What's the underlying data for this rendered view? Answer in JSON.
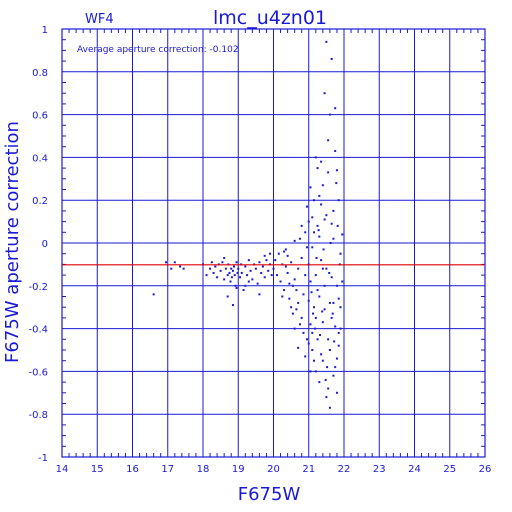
{
  "chart_data": {
    "type": "scatter",
    "panel_label": "WF4",
    "title": "lmc_u4zn01",
    "annotation": "Average aperture correction: -0.102",
    "xlabel": "F675W",
    "ylabel": "F675W aperture correction",
    "xlim": [
      14,
      26
    ],
    "ylim": [
      -1,
      1
    ],
    "x_ticks": [
      "14",
      "15",
      "16",
      "17",
      "18",
      "19",
      "20",
      "21",
      "22",
      "23",
      "24",
      "25",
      "26"
    ],
    "y_ticks": [
      "-1",
      "-0.8",
      "-0.6",
      "-0.4",
      "-0.2",
      "0",
      "0.2",
      "0.4",
      "0.6",
      "0.8",
      "1"
    ],
    "grid": true,
    "reference_line": {
      "y": -0.102,
      "color": "#e00000"
    },
    "colors": {
      "axes": "#1a1ad6",
      "points": "#1a1ad6",
      "reference_line": "#e00000"
    },
    "series": [
      {
        "points": [
          [
            16.6,
            -0.24
          ],
          [
            16.95,
            -0.09
          ],
          [
            17.1,
            -0.12
          ],
          [
            17.2,
            -0.09
          ],
          [
            17.35,
            -0.11
          ],
          [
            17.45,
            -0.12
          ],
          [
            18.0,
            -0.1
          ],
          [
            18.1,
            -0.15
          ],
          [
            18.2,
            -0.12
          ],
          [
            18.25,
            -0.09
          ],
          [
            18.3,
            -0.14
          ],
          [
            18.35,
            -0.11
          ],
          [
            18.4,
            -0.16
          ],
          [
            18.45,
            -0.1
          ],
          [
            18.5,
            -0.13
          ],
          [
            18.55,
            -0.09
          ],
          [
            18.6,
            -0.17
          ],
          [
            18.65,
            -0.12
          ],
          [
            18.7,
            -0.15
          ],
          [
            18.72,
            -0.1
          ],
          [
            18.75,
            -0.14
          ],
          [
            18.78,
            -0.18
          ],
          [
            18.8,
            -0.12
          ],
          [
            18.82,
            -0.16
          ],
          [
            18.85,
            -0.13
          ],
          [
            18.88,
            -0.11
          ],
          [
            18.9,
            -0.15
          ],
          [
            18.92,
            -0.2
          ],
          [
            18.95,
            -0.09
          ],
          [
            18.98,
            -0.14
          ],
          [
            19.0,
            -0.12
          ],
          [
            19.05,
            -0.16
          ],
          [
            19.08,
            -0.1
          ],
          [
            19.1,
            -0.14
          ],
          [
            19.15,
            -0.22
          ],
          [
            19.2,
            -0.11
          ],
          [
            19.25,
            -0.15
          ],
          [
            19.3,
            -0.08
          ],
          [
            19.35,
            -0.13
          ],
          [
            19.4,
            -0.17
          ],
          [
            19.45,
            -0.1
          ],
          [
            19.5,
            -0.12
          ],
          [
            19.55,
            -0.19
          ],
          [
            19.6,
            -0.09
          ],
          [
            19.65,
            -0.14
          ],
          [
            19.7,
            -0.11
          ],
          [
            19.75,
            -0.16
          ],
          [
            19.8,
            -0.08
          ],
          [
            19.85,
            -0.13
          ],
          [
            19.9,
            -0.1
          ],
          [
            19.95,
            -0.15
          ],
          [
            18.7,
            -0.25
          ],
          [
            18.85,
            -0.29
          ],
          [
            19.2,
            -0.2
          ],
          [
            19.6,
            -0.24
          ],
          [
            19.9,
            -0.05
          ],
          [
            18.6,
            -0.07
          ],
          [
            18.95,
            -0.21
          ],
          [
            19.3,
            -0.18
          ],
          [
            19.75,
            -0.06
          ],
          [
            20.0,
            -0.12
          ],
          [
            20.05,
            -0.08
          ],
          [
            20.1,
            -0.15
          ],
          [
            20.15,
            -0.05
          ],
          [
            20.2,
            -0.18
          ],
          [
            20.25,
            -0.1
          ],
          [
            20.3,
            -0.22
          ],
          [
            20.35,
            -0.03
          ],
          [
            20.4,
            -0.14
          ],
          [
            20.45,
            -0.26
          ],
          [
            20.5,
            -0.09
          ],
          [
            20.55,
            -0.2
          ],
          [
            20.6,
            0.01
          ],
          [
            20.65,
            -0.31
          ],
          [
            20.7,
            -0.12
          ],
          [
            20.75,
            -0.38
          ],
          [
            20.8,
            -0.07
          ],
          [
            20.85,
            -0.24
          ],
          [
            20.9,
            0.05
          ],
          [
            20.95,
            -0.45
          ],
          [
            20.6,
            -0.17
          ],
          [
            20.7,
            -0.28
          ],
          [
            20.8,
            -0.35
          ],
          [
            20.9,
            -0.15
          ],
          [
            20.5,
            -0.3
          ],
          [
            20.4,
            -0.06
          ],
          [
            20.65,
            -0.22
          ],
          [
            20.85,
            -0.42
          ],
          [
            20.95,
            -0.02
          ],
          [
            20.75,
            0.02
          ],
          [
            20.55,
            -0.33
          ],
          [
            20.45,
            -0.19
          ],
          [
            20.35,
            -0.11
          ],
          [
            20.25,
            -0.25
          ],
          [
            20.3,
            -0.04
          ],
          [
            20.7,
            -0.49
          ],
          [
            20.8,
            0.08
          ],
          [
            20.9,
            -0.53
          ],
          [
            20.95,
            0.17
          ],
          [
            20.6,
            -0.4
          ],
          [
            21.0,
            -0.1
          ],
          [
            21.05,
            -0.6
          ],
          [
            21.1,
            0.12
          ],
          [
            21.15,
            -0.3
          ],
          [
            21.2,
            0.4
          ],
          [
            21.25,
            -0.45
          ],
          [
            21.3,
            0.03
          ],
          [
            21.35,
            -0.52
          ],
          [
            21.4,
            0.27
          ],
          [
            21.45,
            -0.2
          ],
          [
            21.5,
            0.94
          ],
          [
            21.55,
            -0.68
          ],
          [
            21.6,
            0.6
          ],
          [
            21.65,
            -0.35
          ],
          [
            21.7,
            0.15
          ],
          [
            21.75,
            -0.58
          ],
          [
            21.8,
            0.34
          ],
          [
            21.85,
            -0.42
          ],
          [
            21.9,
            -0.05
          ],
          [
            21.95,
            0.04
          ],
          [
            21.0,
            -0.27
          ],
          [
            21.05,
            0.26
          ],
          [
            21.1,
            -0.42
          ],
          [
            21.15,
            0.05
          ],
          [
            21.2,
            -0.15
          ],
          [
            21.25,
            0.35
          ],
          [
            21.3,
            -0.65
          ],
          [
            21.35,
            0.18
          ],
          [
            21.4,
            -0.37
          ],
          [
            21.45,
            0.7
          ],
          [
            21.5,
            -0.72
          ],
          [
            21.55,
            0.48
          ],
          [
            21.6,
            -0.5
          ],
          [
            21.65,
            0.86
          ],
          [
            21.7,
            -0.28
          ],
          [
            21.75,
            0.63
          ],
          [
            21.8,
            -0.7
          ],
          [
            21.85,
            0.2
          ],
          [
            21.0,
            0.1
          ],
          [
            21.05,
            -0.18
          ],
          [
            21.1,
            -0.5
          ],
          [
            21.15,
            0.2
          ],
          [
            21.2,
            -0.35
          ],
          [
            21.25,
            0.08
          ],
          [
            21.3,
            -0.25
          ],
          [
            21.35,
            0.38
          ],
          [
            21.4,
            -0.55
          ],
          [
            21.45,
            0.11
          ],
          [
            21.5,
            -0.12
          ],
          [
            21.55,
            0.33
          ],
          [
            21.6,
            -0.77
          ],
          [
            21.65,
            0.09
          ],
          [
            21.7,
            -0.62
          ],
          [
            21.75,
            0.43
          ],
          [
            21.8,
            -0.2
          ],
          [
            21.85,
            -0.48
          ],
          [
            21.9,
            -0.3
          ],
          [
            21.05,
            -0.38
          ],
          [
            21.15,
            -0.55
          ],
          [
            21.25,
            -0.22
          ],
          [
            21.35,
            -0.08
          ],
          [
            21.45,
            -0.31
          ],
          [
            21.55,
            -0.45
          ],
          [
            21.65,
            -0.16
          ],
          [
            21.75,
            -0.39
          ],
          [
            21.85,
            -0.26
          ],
          [
            21.0,
            -0.47
          ],
          [
            21.1,
            -0.02
          ],
          [
            21.2,
            -0.6
          ],
          [
            21.3,
            0.22
          ],
          [
            21.4,
            -0.12
          ],
          [
            21.5,
            0.13
          ],
          [
            21.6,
            -0.28
          ],
          [
            21.7,
            0.02
          ],
          [
            21.8,
            -0.54
          ],
          [
            21.9,
            -0.4
          ],
          [
            21.12,
            -0.33
          ],
          [
            21.22,
            -0.07
          ],
          [
            21.32,
            -0.43
          ],
          [
            21.42,
            -0.03
          ],
          [
            21.52,
            -0.58
          ],
          [
            21.62,
            0.0
          ],
          [
            21.72,
            -0.46
          ],
          [
            21.82,
            0.08
          ],
          [
            21.08,
            -0.23
          ],
          [
            21.18,
            -0.4
          ],
          [
            21.28,
            0.06
          ],
          [
            21.38,
            -0.32
          ],
          [
            21.48,
            -0.64
          ],
          [
            21.58,
            -0.14
          ],
          [
            21.68,
            -0.33
          ],
          [
            21.78,
            0.28
          ],
          [
            21.88,
            -0.1
          ],
          [
            21.95,
            -0.18
          ]
        ]
      }
    ]
  }
}
